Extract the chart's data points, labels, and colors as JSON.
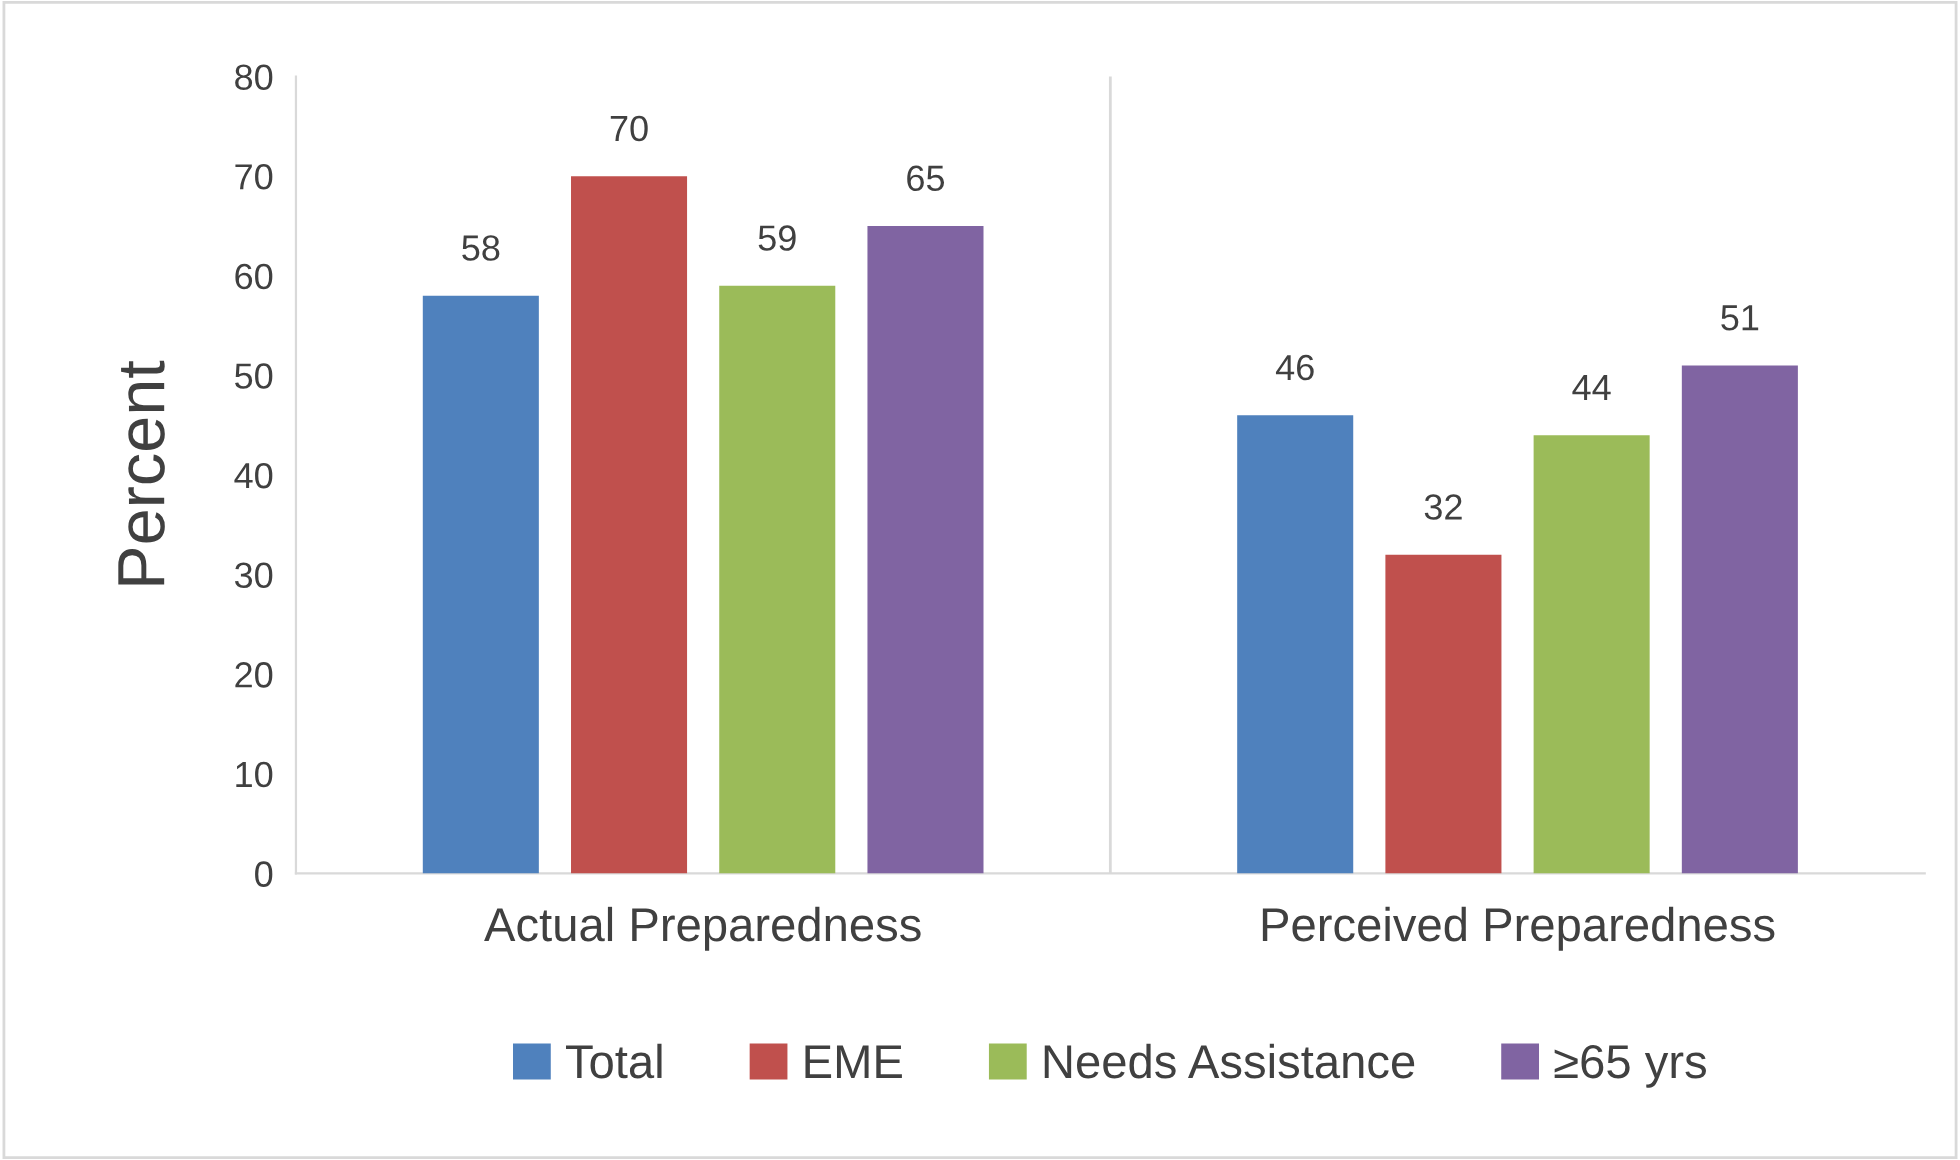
{
  "chart_data": {
    "type": "bar",
    "ylabel": "Percent",
    "categories": [
      "Actual Preparedness",
      "Perceived Preparedness"
    ],
    "series": [
      {
        "name": "Total",
        "color": "#4f81bd",
        "values": [
          58,
          46
        ]
      },
      {
        "name": "EME",
        "color": "#c0504d",
        "values": [
          70,
          32
        ]
      },
      {
        "name": "Needs Assistance",
        "color": "#9bbb59",
        "values": [
          59,
          44
        ]
      },
      {
        "name": "≥65 yrs",
        "color": "#8064a2",
        "values": [
          65,
          51
        ]
      }
    ],
    "ylim": [
      0,
      80
    ],
    "yticks": [
      0,
      10,
      20,
      30,
      40,
      50,
      60,
      70,
      80
    ],
    "grid": "x",
    "legend": "bottom",
    "data_labels": true
  }
}
